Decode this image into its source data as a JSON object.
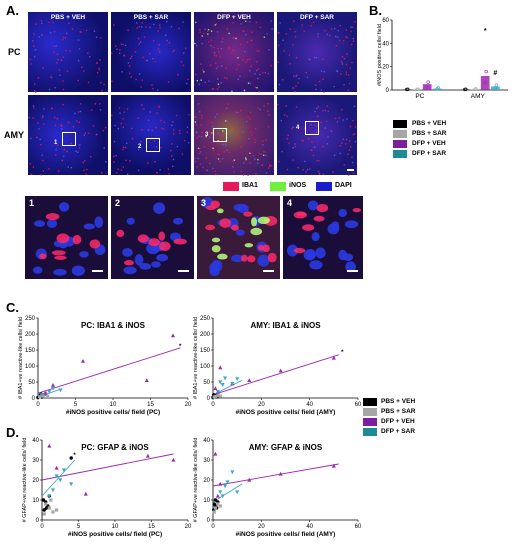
{
  "panels": {
    "a": "A.",
    "b": "B.",
    "c": "C.",
    "d": "D."
  },
  "micrograph": {
    "columns": [
      "PBS + VEH",
      "PBS + SAR",
      "DFP + VEH",
      "DFP + SAR"
    ],
    "rows": [
      "PC",
      "AMY"
    ],
    "roi_numbers": [
      "1",
      "2",
      "3",
      "4"
    ],
    "channel_legend": [
      {
        "label": "IBA1",
        "color": "#e6195a"
      },
      {
        "label": "iNOS",
        "color": "#6ef03c"
      },
      {
        "label": "DAPI",
        "color": "#1c1cc8"
      }
    ]
  },
  "group_legend": [
    {
      "label": "PBS + VEH",
      "color": "#000000"
    },
    {
      "label": "PBS + SAR",
      "color": "#a6a6a6"
    },
    {
      "label": "DFP + VEH",
      "color": "#7b1fa2"
    },
    {
      "label": "DFP + SAR",
      "color": "#1e8a96"
    }
  ],
  "colors": {
    "purple": "#9c27b0",
    "teal": "#3aa7c9",
    "black": "#000000",
    "gray": "#a6a6a6"
  },
  "chart_data": [
    {
      "id": "B",
      "type": "bar",
      "ylabel": "#iNOS positive cells/ field",
      "ylim": [
        0,
        60
      ],
      "yticks": [
        0,
        20,
        40,
        60
      ],
      "categories": [
        "PC",
        "AMY"
      ],
      "series": [
        {
          "name": "PBS + VEH",
          "values": [
            0.3,
            0.3
          ]
        },
        {
          "name": "PBS + SAR",
          "values": [
            0.4,
            0.5
          ]
        },
        {
          "name": "DFP + VEH",
          "values": [
            5,
            12
          ]
        },
        {
          "name": "DFP + SAR",
          "values": [
            1.2,
            3
          ]
        }
      ],
      "annotations": [
        {
          "text": "*",
          "category": "AMY",
          "series": "DFP + VEH",
          "y": 49
        },
        {
          "text": "#",
          "category": "AMY",
          "series": "DFP + SAR",
          "y": 13
        }
      ]
    },
    {
      "id": "C1",
      "type": "scatter",
      "title": "PC: IBA1 & iNOS",
      "xlabel": "#iNOS positive cells/ field (PC)",
      "ylabel": "# IBA1+ve reactive-like cells/ field",
      "xlim": [
        0,
        20
      ],
      "ylim": [
        0,
        250
      ],
      "xticks": [
        0,
        5,
        10,
        15,
        20
      ],
      "yticks": [
        0,
        50,
        100,
        150,
        200,
        250
      ],
      "series": [
        {
          "name": "PBS + VEH",
          "points": [
            [
              0,
              2
            ],
            [
              0.2,
              5
            ],
            [
              0.3,
              8
            ],
            [
              0.5,
              3
            ],
            [
              0.8,
              10
            ],
            [
              0.4,
              12
            ]
          ]
        },
        {
          "name": "PBS + SAR",
          "points": [
            [
              0.5,
              6
            ],
            [
              1,
              15
            ],
            [
              0.7,
              9
            ],
            [
              1.3,
              5
            ],
            [
              0.2,
              4
            ]
          ]
        },
        {
          "name": "DFP + VEH",
          "points": [
            [
              18,
              195
            ],
            [
              14.5,
              55
            ],
            [
              6,
              115
            ],
            [
              2,
              40
            ],
            [
              1,
              15
            ]
          ]
        },
        {
          "name": "DFP + SAR",
          "points": [
            [
              2,
              30
            ],
            [
              1.5,
              20
            ],
            [
              0.5,
              10
            ],
            [
              3,
              25
            ]
          ]
        }
      ],
      "trendlines": [
        {
          "series": "DFP + VEH",
          "from": [
            0,
            15
          ],
          "to": [
            19,
            157
          ]
        },
        {
          "series": "DFP + SAR",
          "from": [
            0,
            2
          ],
          "to": [
            3,
            28
          ]
        }
      ],
      "annotations": [
        {
          "text": "*",
          "x": 18.8,
          "y": 157
        }
      ]
    },
    {
      "id": "C2",
      "type": "scatter",
      "title": "AMY: IBA1 & iNOS",
      "xlabel": "#iNOS positive cells/ field (AMY)",
      "ylabel": "# IBA1+ve reactive-like cells/ field",
      "xlim": [
        0,
        60
      ],
      "ylim": [
        0,
        250
      ],
      "xticks": [
        0,
        20,
        40,
        60
      ],
      "yticks": [
        0,
        50,
        100,
        150,
        200,
        250
      ],
      "series": [
        {
          "name": "PBS + VEH",
          "points": [
            [
              0,
              2
            ],
            [
              0.5,
              5
            ],
            [
              1,
              3
            ],
            [
              1.5,
              8
            ],
            [
              2,
              4
            ],
            [
              0.3,
              10
            ]
          ]
        },
        {
          "name": "PBS + SAR",
          "points": [
            [
              1,
              5
            ],
            [
              2,
              7
            ],
            [
              0.5,
              3
            ],
            [
              3,
              6
            ]
          ]
        },
        {
          "name": "DFP + VEH",
          "points": [
            [
              50,
              125
            ],
            [
              28,
              85
            ],
            [
              15,
              55
            ],
            [
              1,
              30
            ],
            [
              3,
              95
            ],
            [
              8,
              45
            ],
            [
              2,
              18
            ]
          ]
        },
        {
          "name": "DFP + SAR",
          "points": [
            [
              3,
              50
            ],
            [
              5,
              62
            ],
            [
              8,
              45
            ],
            [
              10,
              60
            ],
            [
              2,
              20
            ],
            [
              4,
              42
            ]
          ]
        }
      ],
      "trendlines": [
        {
          "series": "DFP + VEH",
          "from": [
            0,
            10
          ],
          "to": [
            52,
            135
          ]
        },
        {
          "series": "DFP + SAR",
          "from": [
            0,
            10
          ],
          "to": [
            12,
            55
          ]
        }
      ],
      "annotations": [
        {
          "text": "*",
          "x": 53,
          "y": 137
        }
      ]
    },
    {
      "id": "D1",
      "type": "scatter",
      "title": "PC: GFAP & iNOS",
      "xlabel": "#iNOS positive cells/ field (PC)",
      "ylabel": "# GFAP+ve reactive-like cells/ field",
      "xlim": [
        0,
        20
      ],
      "ylim": [
        0,
        40
      ],
      "xticks": [
        0,
        5,
        10,
        15,
        20
      ],
      "yticks": [
        0,
        10,
        20,
        30,
        40
      ],
      "series": [
        {
          "name": "PBS + VEH",
          "points": [
            [
              0.2,
              10
            ],
            [
              0.5,
              9
            ],
            [
              0.8,
              7
            ],
            [
              1,
              12
            ],
            [
              0.3,
              5
            ],
            [
              4,
              31
            ],
            [
              0.6,
              6
            ]
          ]
        },
        {
          "name": "PBS + SAR",
          "points": [
            [
              0.5,
              8
            ],
            [
              1,
              6
            ],
            [
              1.5,
              4
            ],
            [
              2,
              5
            ],
            [
              0.3,
              3
            ],
            [
              1.2,
              10
            ]
          ]
        },
        {
          "name": "DFP + VEH",
          "points": [
            [
              18,
              30
            ],
            [
              14.5,
              32
            ],
            [
              6,
              13
            ],
            [
              1,
              37
            ],
            [
              2,
              26
            ]
          ]
        },
        {
          "name": "DFP + SAR",
          "points": [
            [
              2,
              22
            ],
            [
              3,
              25
            ],
            [
              4,
              18
            ],
            [
              1.5,
              15
            ],
            [
              2.5,
              20
            ],
            [
              1,
              12
            ]
          ]
        }
      ],
      "trendlines": [
        {
          "series": "DFP + VEH",
          "from": [
            0,
            20
          ],
          "to": [
            18,
            33
          ]
        },
        {
          "series": "DFP + SAR",
          "from": [
            0,
            12
          ],
          "to": [
            4.5,
            30
          ]
        }
      ],
      "annotations": [
        {
          "text": "*",
          "x": 4.3,
          "y": 31.5
        }
      ]
    },
    {
      "id": "D2",
      "type": "scatter",
      "title": "AMY: GFAP & iNOS",
      "xlabel": "#iNOS positive cells/ field (AMY)",
      "ylabel": "# GFAP+ve reactive-like cells/ field",
      "xlim": [
        0,
        60
      ],
      "ylim": [
        0,
        40
      ],
      "xticks": [
        0,
        20,
        40,
        60
      ],
      "yticks": [
        0,
        10,
        20,
        30,
        40
      ],
      "series": [
        {
          "name": "PBS + VEH",
          "points": [
            [
              0.5,
              8
            ],
            [
              1,
              10
            ],
            [
              1.5,
              6
            ],
            [
              2,
              9
            ],
            [
              0.3,
              5
            ],
            [
              1,
              7
            ]
          ]
        },
        {
          "name": "PBS + SAR",
          "points": [
            [
              1,
              6
            ],
            [
              2,
              8
            ],
            [
              0.5,
              4
            ],
            [
              3,
              7
            ]
          ]
        },
        {
          "name": "DFP + VEH",
          "points": [
            [
              50,
              27
            ],
            [
              28,
              23
            ],
            [
              1,
              33
            ],
            [
              3,
              18
            ],
            [
              15,
              20
            ],
            [
              2,
              12
            ]
          ]
        },
        {
          "name": "DFP + SAR",
          "points": [
            [
              5,
              17
            ],
            [
              8,
              24
            ],
            [
              10,
              14
            ],
            [
              3,
              14
            ],
            [
              6,
              19
            ],
            [
              4,
              12
            ]
          ]
        }
      ],
      "trendlines": [
        {
          "series": "DFP + VEH",
          "from": [
            0,
            17
          ],
          "to": [
            52,
            28
          ]
        },
        {
          "series": "DFP + SAR",
          "from": [
            0,
            9
          ],
          "to": [
            12,
            18
          ]
        }
      ],
      "annotations": []
    }
  ]
}
